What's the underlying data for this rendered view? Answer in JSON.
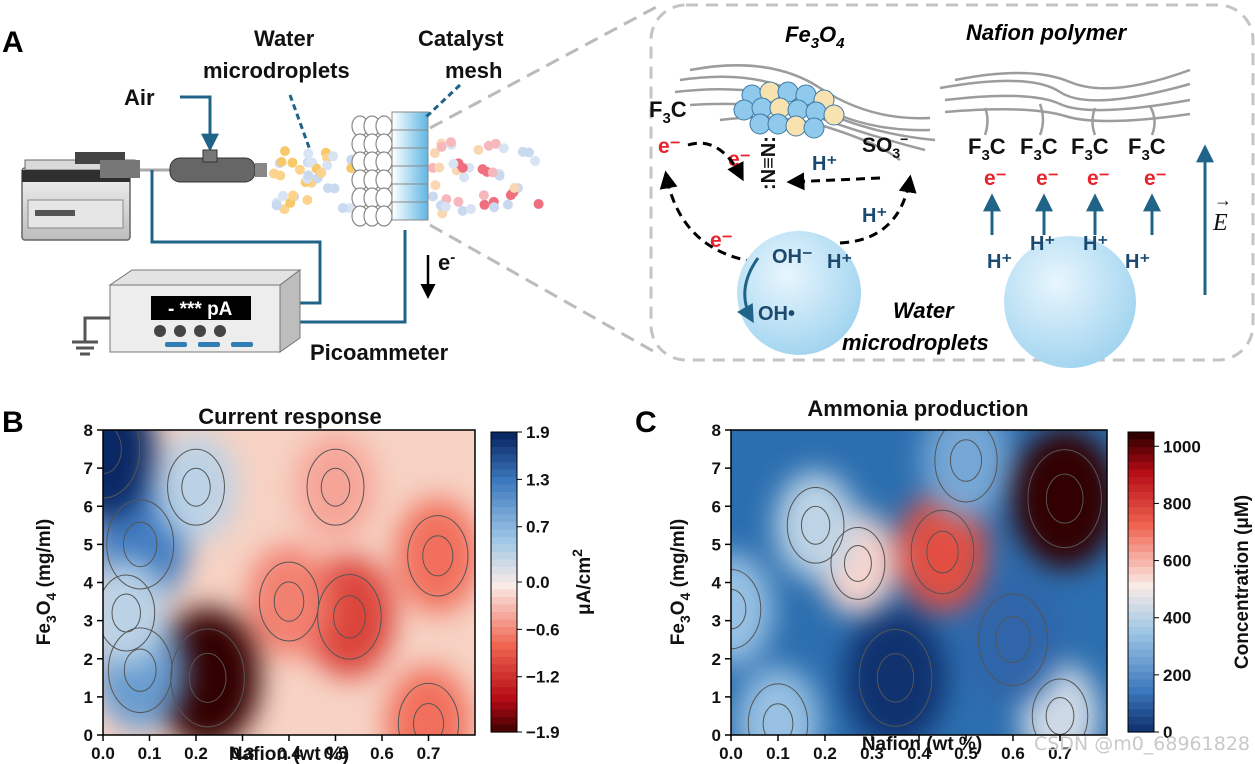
{
  "panel_a": {
    "letter": "A",
    "label_air": "Air",
    "label_water_line1": "Water",
    "label_water_line2": "microdroplets",
    "label_catalyst_line1": "Catalyst",
    "label_catalyst_line2": "mesh",
    "meter_readout": "- *** pA",
    "label_picoammeter": "Picoammeter",
    "label_electron_flow": "e",
    "label_electron_sup": "-",
    "inset": {
      "title_fe3o4_base": "Fe",
      "title_fe3o4_sub1": "3",
      "title_fe3o4_mid": "O",
      "title_fe3o4_sub2": "4",
      "title_nafion": "Nafion polymer",
      "f3c_base": "F",
      "f3c_sub": "3",
      "f3c_end": "C",
      "electron": "e⁻",
      "dinitrogen": ":N≡N:",
      "proton": "H⁺",
      "so3_base": "SO",
      "so3_sub": "3",
      "so3_sup": "−",
      "hydroxide": "OH⁻",
      "hydroxyl_radical": "OH•",
      "water_line1": "Water",
      "water_line2": "microdroplets",
      "efield": "E",
      "efield_arrow": "→"
    }
  },
  "chart_data": [
    {
      "type": "heatmap",
      "panel_letter": "B",
      "title": "Current response",
      "xlabel": "Nafion (wt %)",
      "ylabel_base": "Fe",
      "ylabel_sub1": "3",
      "ylabel_mid": "O",
      "ylabel_sub2": "4",
      "ylabel_end": " (mg/ml)",
      "xlim": [
        0.0,
        0.8
      ],
      "ylim": [
        0,
        8
      ],
      "xticks": [
        "0.0",
        "0.1",
        "0.2",
        "0.3",
        "0.4",
        "0.5",
        "0.6",
        "0.7"
      ],
      "yticks": [
        "0",
        "1",
        "2",
        "3",
        "4",
        "5",
        "6",
        "7",
        "8"
      ],
      "colorbar_label": "μA/cm",
      "colorbar_label_sup": "2",
      "colorbar_ticks": [
        "1.9",
        "1.3",
        "0.7",
        "0.0",
        "−0.6",
        "−1.2",
        "−1.9"
      ],
      "colorbar_range": [
        -1.9,
        1.9
      ],
      "hotspots": [
        {
          "x": 0.225,
          "y": 1.5,
          "value": -1.9
        },
        {
          "x": 0.53,
          "y": 3.1,
          "value": -1.0
        },
        {
          "x": 0.72,
          "y": 4.7,
          "value": -0.7
        },
        {
          "x": 0.4,
          "y": 3.5,
          "value": -0.6
        },
        {
          "x": 0.08,
          "y": 5.0,
          "value": 1.3
        },
        {
          "x": 0.0,
          "y": 7.5,
          "value": 1.9
        },
        {
          "x": 0.08,
          "y": 1.7,
          "value": 1.0
        },
        {
          "x": 0.05,
          "y": 3.2,
          "value": 0.4
        },
        {
          "x": 0.2,
          "y": 6.5,
          "value": 0.4
        },
        {
          "x": 0.5,
          "y": 6.5,
          "value": -0.4
        },
        {
          "x": 0.7,
          "y": 0.3,
          "value": -0.7
        }
      ]
    },
    {
      "type": "heatmap",
      "panel_letter": "C",
      "title": "Ammonia production",
      "xlabel": "Nafion (wt %)",
      "ylabel_base": "Fe",
      "ylabel_sub1": "3",
      "ylabel_mid": "O",
      "ylabel_sub2": "4",
      "ylabel_end": " (mg/ml)",
      "xlim": [
        0.0,
        0.8
      ],
      "ylim": [
        0,
        8
      ],
      "xticks": [
        "0.0",
        "0.1",
        "0.2",
        "0.3",
        "0.4",
        "0.5",
        "0.6",
        "0.7"
      ],
      "yticks": [
        "0",
        "1",
        "2",
        "3",
        "4",
        "5",
        "6",
        "7",
        "8"
      ],
      "colorbar_label": "Concentration (μM)",
      "colorbar_ticks": [
        "1000",
        "800",
        "600",
        "400",
        "200",
        "0"
      ],
      "colorbar_range": [
        0,
        1050
      ],
      "hotspots": [
        {
          "x": 0.71,
          "y": 6.2,
          "value": 1050
        },
        {
          "x": 0.45,
          "y": 4.8,
          "value": 780
        },
        {
          "x": 0.27,
          "y": 4.5,
          "value": 560
        },
        {
          "x": 0.18,
          "y": 5.5,
          "value": 420
        },
        {
          "x": 0.7,
          "y": 0.5,
          "value": 450
        },
        {
          "x": 0.1,
          "y": 0.3,
          "value": 350
        },
        {
          "x": 0.0,
          "y": 3.3,
          "value": 350
        },
        {
          "x": 0.5,
          "y": 7.2,
          "value": 280
        },
        {
          "x": 0.35,
          "y": 1.5,
          "value": 20
        },
        {
          "x": 0.6,
          "y": 2.5,
          "value": 120
        }
      ]
    }
  ],
  "watermark": "CSDN @m0_68961828"
}
